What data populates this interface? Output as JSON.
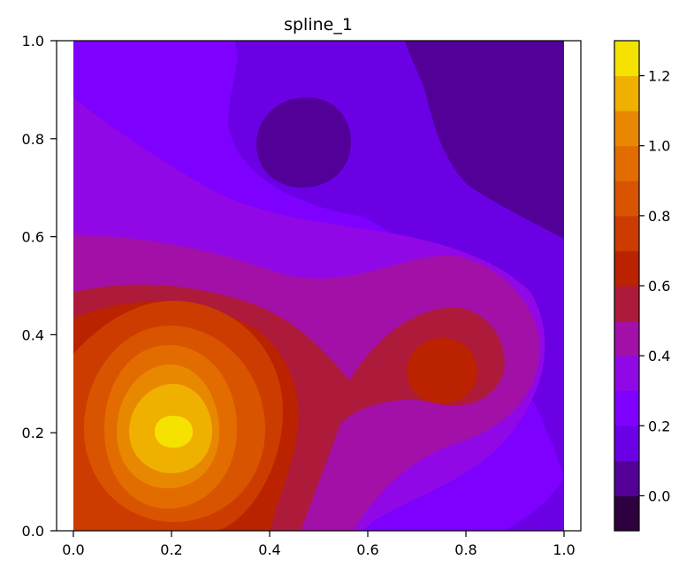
{
  "chart_data": {
    "type": "heatmap",
    "subtype": "filled-contour",
    "title": "spline_1",
    "xlabel": "",
    "ylabel": "",
    "xlim": [
      0.0,
      1.0
    ],
    "ylim": [
      0.0,
      1.0
    ],
    "x_ticks": [
      "0.0",
      "0.2",
      "0.4",
      "0.6",
      "0.8",
      "1.0"
    ],
    "y_ticks": [
      "0.0",
      "0.2",
      "0.4",
      "0.6",
      "0.8",
      "1.0"
    ],
    "colorbar": {
      "min": -0.1,
      "max": 1.3,
      "ticks": [
        "0.0",
        "0.2",
        "0.4",
        "0.6",
        "0.8",
        "1.0",
        "1.2"
      ],
      "levels": [
        -0.1,
        0.0,
        0.1,
        0.2,
        0.3,
        0.4,
        0.5,
        0.6,
        0.7,
        0.8,
        0.9,
        1.0,
        1.1,
        1.2,
        1.3
      ],
      "colors": [
        "#2e0040",
        "#520098",
        "#6b00e5",
        "#7e00ff",
        "#9008e6",
        "#a210a8",
        "#ae1a3a",
        "#bb2200",
        "#cc3c00",
        "#d95400",
        "#e26c00",
        "#e88800",
        "#f0b000",
        "#f5e200"
      ]
    },
    "features": [
      {
        "kind": "peak",
        "x": 0.2,
        "y": 0.2,
        "value": 1.25
      },
      {
        "kind": "peak",
        "x": 0.75,
        "y": 0.32,
        "value": 0.75
      },
      {
        "kind": "trough",
        "x": 0.47,
        "y": 0.79,
        "value": 0.05
      },
      {
        "kind": "low-region",
        "x": 0.95,
        "y": 0.9,
        "value": 0.05
      }
    ],
    "grid": false,
    "colormap": "gnuplot"
  }
}
